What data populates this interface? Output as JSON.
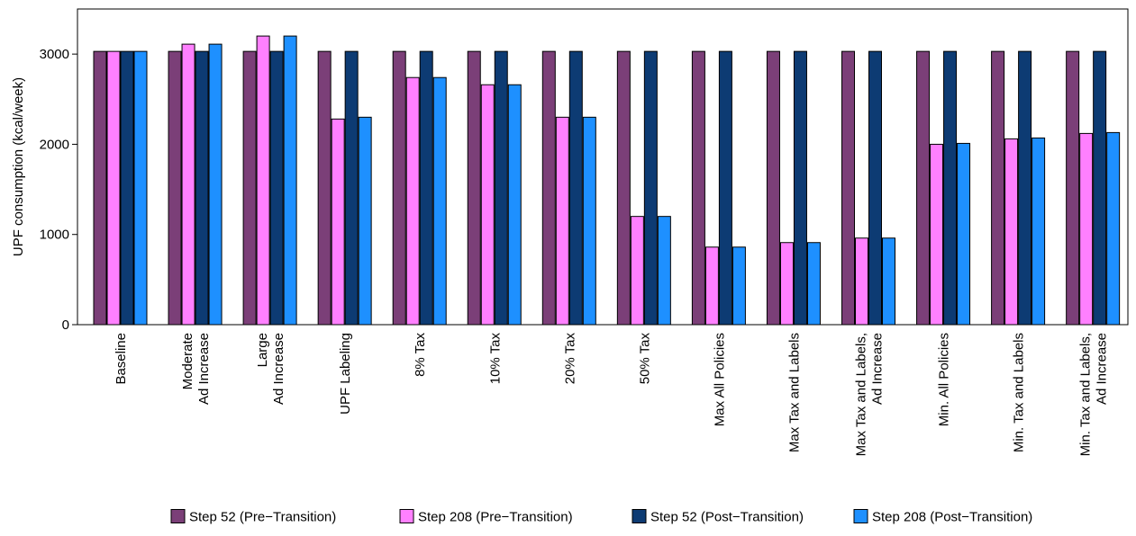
{
  "chart_data": {
    "type": "bar",
    "title": "",
    "xlabel": "",
    "ylabel": "UPF consumption (kcal/week)",
    "ylim": [
      0,
      3500
    ],
    "yticks": [
      0,
      1000,
      2000,
      3000
    ],
    "grid": false,
    "legend_position": "bottom",
    "categories": [
      [
        "Baseline"
      ],
      [
        "Moderate",
        "Ad Increase"
      ],
      [
        "Large",
        "Ad Increase"
      ],
      [
        "UPF Labeling"
      ],
      [
        "8% Tax"
      ],
      [
        "10% Tax"
      ],
      [
        "20% Tax"
      ],
      [
        "50% Tax"
      ],
      [
        "Max All Policies"
      ],
      [
        "Max Tax and Labels"
      ],
      [
        "Max Tax and Labels,",
        "Ad Increase"
      ],
      [
        "Min. All Policies"
      ],
      [
        "Min. Tax and Labels"
      ],
      [
        "Min. Tax and Labels,",
        "Ad Increase"
      ]
    ],
    "series": [
      {
        "name": "Step 52 (Pre−Transition)",
        "color": "#7b3f78",
        "values": [
          3030,
          3030,
          3030,
          3030,
          3030,
          3030,
          3030,
          3030,
          3030,
          3030,
          3030,
          3030,
          3030,
          3030
        ]
      },
      {
        "name": "Step 208 (Pre−Transition)",
        "color": "#ff80ff",
        "values": [
          3030,
          3110,
          3200,
          2280,
          2740,
          2660,
          2300,
          1200,
          860,
          910,
          960,
          2000,
          2060,
          2120
        ]
      },
      {
        "name": "Step 52 (Post−Transition)",
        "color": "#0d3b73",
        "values": [
          3030,
          3030,
          3030,
          3030,
          3030,
          3030,
          3030,
          3030,
          3030,
          3030,
          3030,
          3030,
          3030,
          3030
        ]
      },
      {
        "name": "Step 208 (Post−Transition)",
        "color": "#1e90ff",
        "values": [
          3030,
          3110,
          3200,
          2300,
          2740,
          2660,
          2300,
          1200,
          860,
          910,
          960,
          2010,
          2070,
          2130
        ]
      }
    ]
  }
}
